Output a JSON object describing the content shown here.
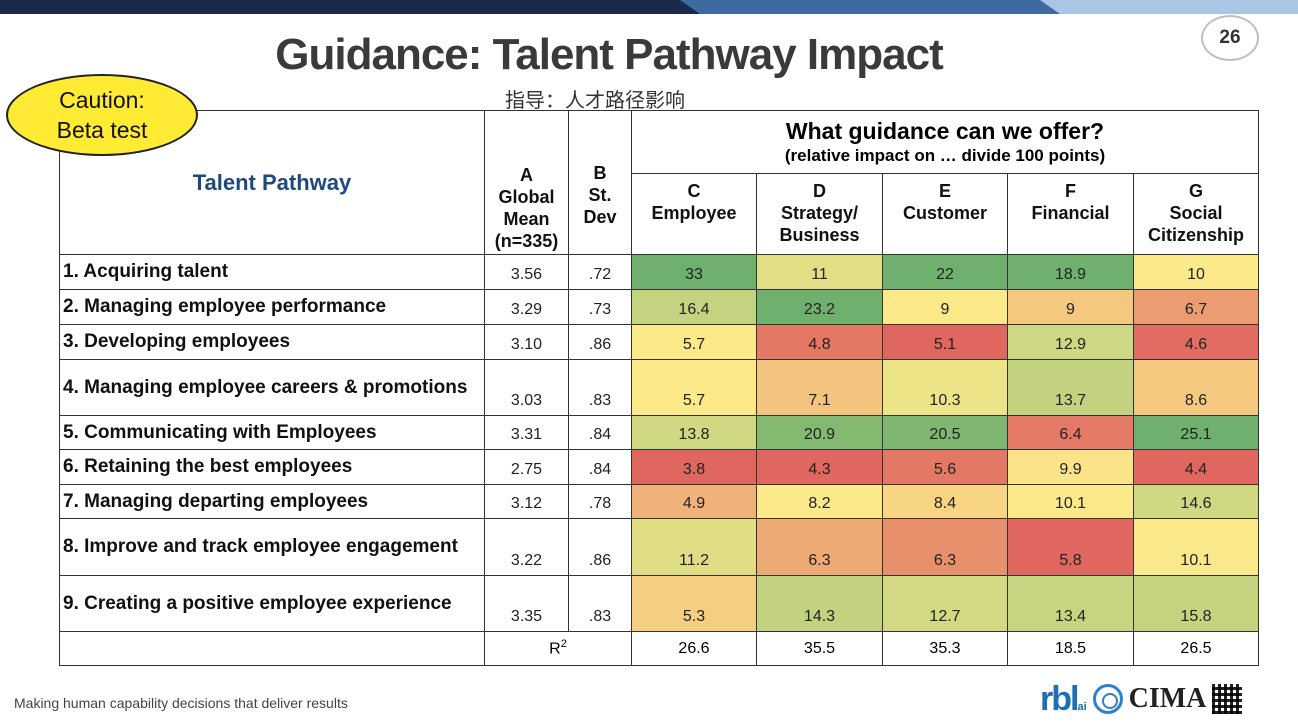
{
  "slide": {
    "title": "Guidance: Talent Pathway Impact",
    "subtitle_chinese": "指导：人才路径影响",
    "page_number": "26",
    "caution_line1": "Caution:",
    "caution_line2": "Beta test",
    "footer": "Making human capability decisions that deliver results",
    "logos": {
      "rbl": "rbl",
      "rbl_suffix": "ai",
      "cima": "CIMA"
    }
  },
  "table": {
    "pathway_header": "Talent Pathway",
    "col_a": {
      "letter": "A",
      "line1": "Global",
      "line2": "Mean",
      "line3": "(n=335)"
    },
    "col_b": {
      "letter": "B",
      "line1": "St.",
      "line2": "Dev"
    },
    "guidance_header": "What guidance can we offer?",
    "guidance_subheader": "(relative impact on … divide 100 points)",
    "col_c": {
      "letter": "C",
      "line1": "Employee",
      "line2": ""
    },
    "col_d": {
      "letter": "D",
      "line1": "Strategy/",
      "line2": "Business"
    },
    "col_e": {
      "letter": "E",
      "line1": "Customer",
      "line2": ""
    },
    "col_f": {
      "letter": "F",
      "line1": "Financial",
      "line2": ""
    },
    "col_g": {
      "letter": "G",
      "line1": "Social",
      "line2": "Citizenship"
    },
    "rows": [
      {
        "label": "1. Acquiring talent",
        "mean": "3.56",
        "sd": ".72",
        "c": "33",
        "d": "11",
        "e": "22",
        "f": "18.9",
        "g": "10"
      },
      {
        "label": "2. Managing employee performance",
        "mean": "3.29",
        "sd": ".73",
        "c": "16.4",
        "d": "23.2",
        "e": "9",
        "f": "9",
        "g": "6.7"
      },
      {
        "label": "3. Developing employees",
        "mean": "3.10",
        "sd": ".86",
        "c": "5.7",
        "d": "4.8",
        "e": "5.1",
        "f": "12.9",
        "g": "4.6"
      },
      {
        "label": "4. Managing employee careers & promotions",
        "mean": "3.03",
        "sd": ".83",
        "c": "5.7",
        "d": "7.1",
        "e": "10.3",
        "f": "13.7",
        "g": "8.6"
      },
      {
        "label": "5. Communicating with Employees",
        "mean": "3.31",
        "sd": ".84",
        "c": "13.8",
        "d": "20.9",
        "e": "20.5",
        "f": "6.4",
        "g": "25.1"
      },
      {
        "label": "6. Retaining the best employees",
        "mean": "2.75",
        "sd": ".84",
        "c": "3.8",
        "d": "4.3",
        "e": "5.6",
        "f": "9.9",
        "g": "4.4"
      },
      {
        "label": "7. Managing departing employees",
        "mean": "3.12",
        "sd": ".78",
        "c": "4.9",
        "d": "8.2",
        "e": "8.4",
        "f": "10.1",
        "g": "14.6"
      },
      {
        "label": "8. Improve and track employee engagement",
        "mean": "3.22",
        "sd": ".86",
        "c": "11.2",
        "d": "6.3",
        "e": "6.3",
        "f": "5.8",
        "g": "10.1"
      },
      {
        "label": "9. Creating  a positive employee experience",
        "mean": "3.35",
        "sd": ".83",
        "c": "5.3",
        "d": "14.3",
        "e": "12.7",
        "f": "13.4",
        "g": "15.8"
      }
    ],
    "r2_label": "R",
    "r2_sup": "2",
    "r2": {
      "c": "26.6",
      "d": "35.5",
      "e": "35.3",
      "f": "18.5",
      "g": "26.5"
    }
  },
  "colors": {
    "heat_low": "#e0675f",
    "heat_mid": "#fbe98a",
    "heat_high": "#6fb06e",
    "pathway_header": "#1f497d",
    "caution_fill": "#ffeb33",
    "topbar_dark": "#1a2a4a",
    "topbar_light": "#a9c6e4"
  }
}
